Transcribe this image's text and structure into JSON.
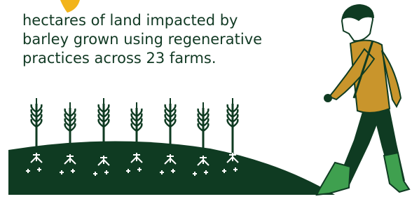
{
  "caption": {
    "lines": [
      "hectares of land impacted by",
      "barley grown using regenerative",
      "practices across 23 farms."
    ]
  }
}
